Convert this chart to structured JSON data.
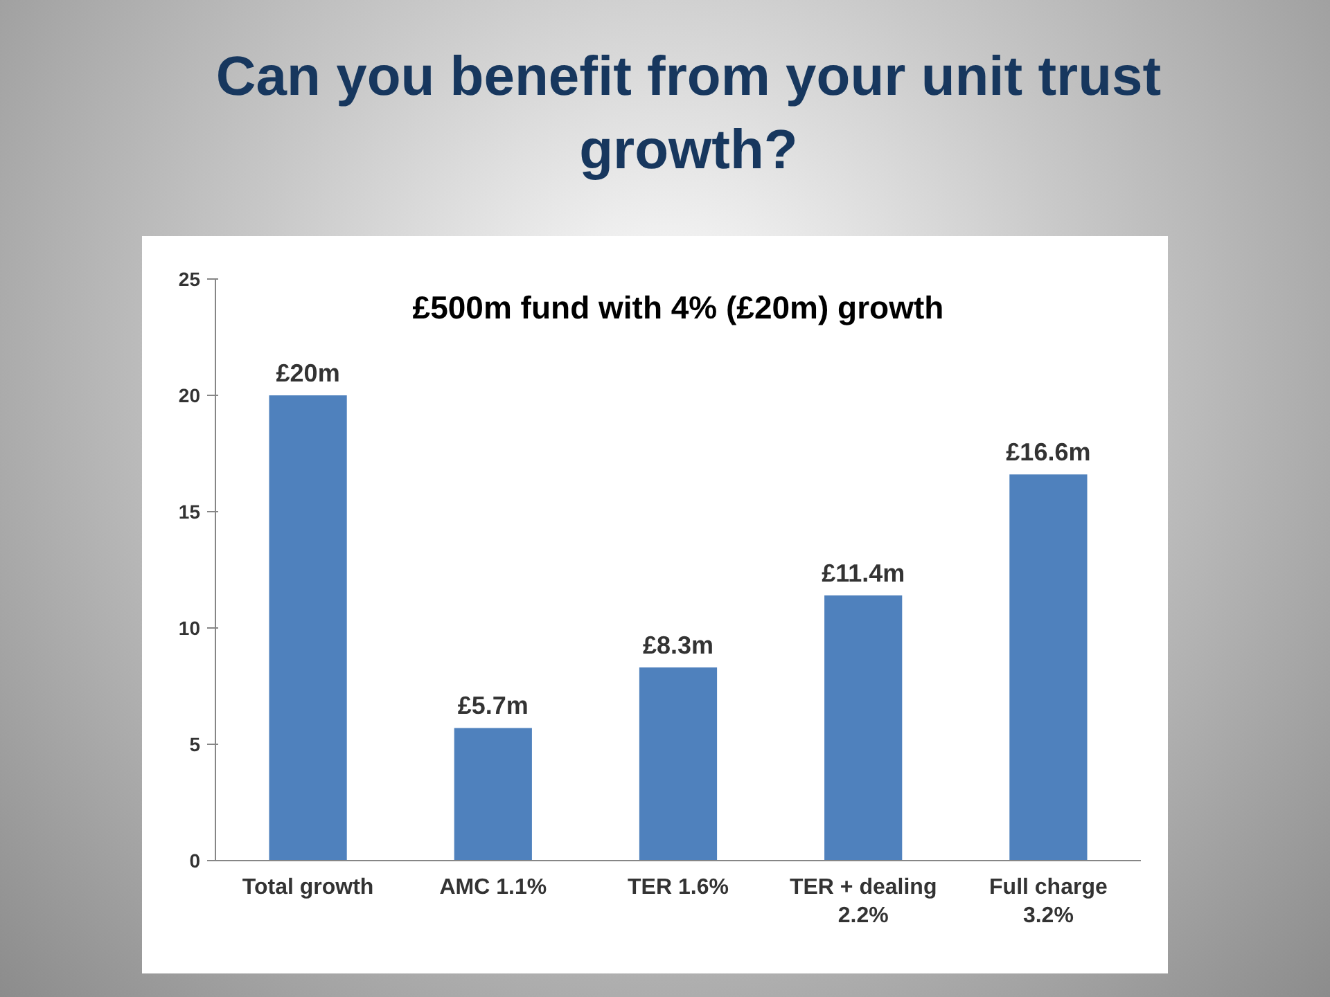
{
  "chart_data": {
    "type": "bar",
    "title": "Can you benefit from your unit trust\ngrowth?",
    "annotations": [
      "£500m fund with 4% (£20m) growth"
    ],
    "categories": [
      "Total growth",
      "AMC 1.1%",
      "TER 1.6%",
      "TER + dealing\n2.2%",
      "Full charge\n3.2%"
    ],
    "values": [
      20,
      5.7,
      8.3,
      11.4,
      16.6
    ],
    "value_labels": [
      "£20m",
      "£5.7m",
      "£8.3m",
      "£11.4m",
      "£16.6m"
    ],
    "color": "#4f81bd",
    "ylim": [
      0,
      25
    ],
    "yticks": [
      0,
      5,
      10,
      15,
      20,
      25
    ]
  }
}
